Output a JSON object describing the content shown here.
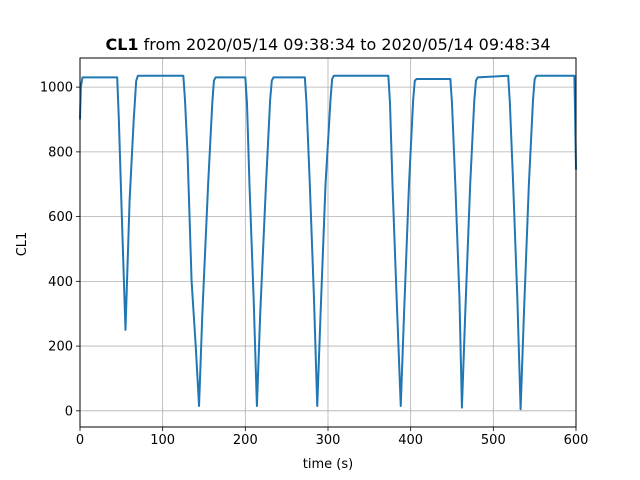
{
  "chart_data": {
    "type": "line",
    "title_bold": "CL1",
    "title_rest": " from 2020/05/14 09:38:34 to 2020/05/14 09:48:34",
    "xlabel": "time (s)",
    "ylabel": "CL1",
    "xlim": [
      0,
      600
    ],
    "ylim": [
      -50,
      1090
    ],
    "xticks": [
      0,
      100,
      200,
      300,
      400,
      500,
      600
    ],
    "yticks": [
      0,
      200,
      400,
      600,
      800,
      1000
    ],
    "grid": true,
    "line_color": "#1f77b4",
    "series": [
      {
        "x": [
          0,
          1,
          3,
          45,
          47,
          50,
          55,
          60,
          65,
          68,
          70,
          125,
          127,
          130,
          135,
          140,
          144,
          148,
          155,
          160,
          162,
          164,
          200,
          202,
          205,
          210,
          214,
          218,
          225,
          230,
          232,
          234,
          272,
          274,
          278,
          283,
          287,
          291,
          297,
          303,
          305,
          307,
          373,
          375,
          378,
          383,
          388,
          392,
          398,
          403,
          405,
          407,
          448,
          450,
          454,
          459,
          462,
          466,
          472,
          477,
          479,
          481,
          518,
          520,
          524,
          529,
          533,
          537,
          543,
          548,
          550,
          552,
          598,
          599,
          600
        ],
        "y": [
          900,
          1000,
          1030,
          1030,
          900,
          650,
          250,
          650,
          900,
          1020,
          1035,
          1035,
          960,
          800,
          400,
          200,
          15,
          300,
          700,
          950,
          1020,
          1030,
          1030,
          950,
          700,
          350,
          15,
          300,
          700,
          960,
          1020,
          1030,
          1030,
          950,
          700,
          350,
          15,
          300,
          700,
          960,
          1025,
          1035,
          1035,
          950,
          700,
          350,
          15,
          300,
          700,
          960,
          1020,
          1025,
          1025,
          950,
          700,
          350,
          10,
          300,
          700,
          960,
          1020,
          1030,
          1035,
          950,
          700,
          350,
          5,
          300,
          700,
          960,
          1025,
          1035,
          1035,
          900,
          745
        ]
      }
    ]
  }
}
